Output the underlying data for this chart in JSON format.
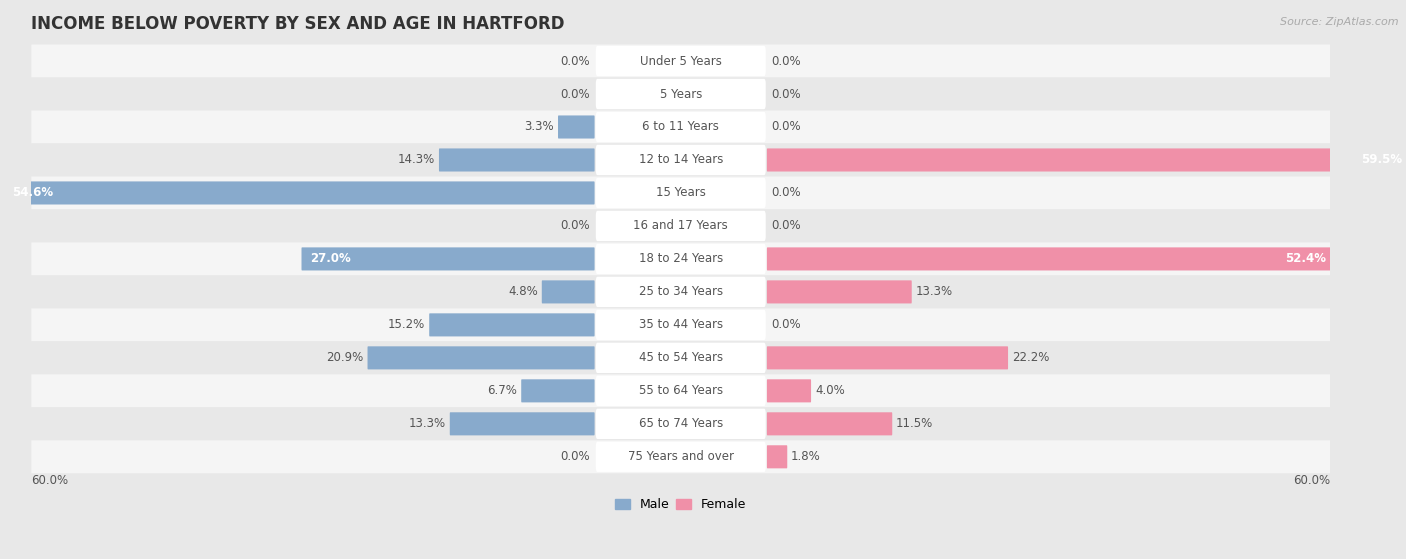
{
  "title": "INCOME BELOW POVERTY BY SEX AND AGE IN HARTFORD",
  "source": "Source: ZipAtlas.com",
  "categories": [
    "Under 5 Years",
    "5 Years",
    "6 to 11 Years",
    "12 to 14 Years",
    "15 Years",
    "16 and 17 Years",
    "18 to 24 Years",
    "25 to 34 Years",
    "35 to 44 Years",
    "45 to 54 Years",
    "55 to 64 Years",
    "65 to 74 Years",
    "75 Years and over"
  ],
  "male": [
    0.0,
    0.0,
    3.3,
    14.3,
    54.6,
    0.0,
    27.0,
    4.8,
    15.2,
    20.9,
    6.7,
    13.3,
    0.0
  ],
  "female": [
    0.0,
    0.0,
    0.0,
    59.5,
    0.0,
    0.0,
    52.4,
    13.3,
    0.0,
    22.2,
    4.0,
    11.5,
    1.8
  ],
  "male_color": "#88aacc",
  "female_color": "#f090a8",
  "max_val": 60.0,
  "background_color": "#e8e8e8",
  "row_color_light": "#f5f5f5",
  "row_color_dark": "#e8e8e8",
  "title_fontsize": 12,
  "label_fontsize": 8.5,
  "value_fontsize": 8.5
}
